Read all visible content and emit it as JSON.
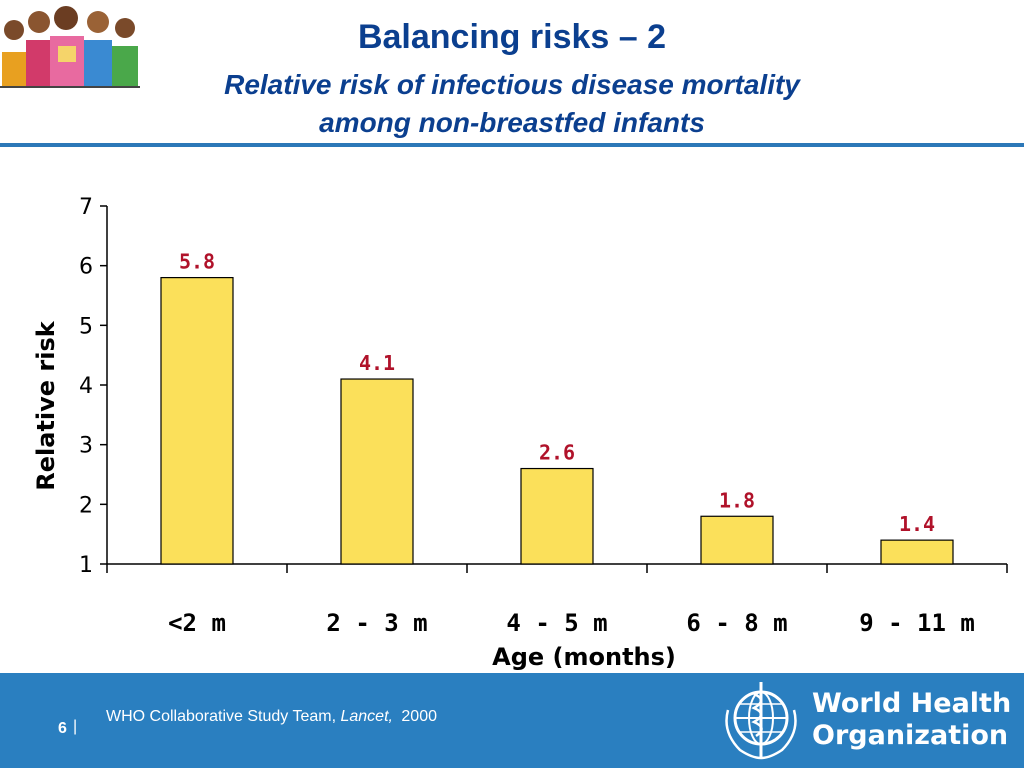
{
  "slide": {
    "title": "Balancing risks – 2",
    "subtitle_line1": "Relative risk of infectious disease mortality",
    "subtitle_line2": "among non-breastfed infants",
    "page_number": "6",
    "citation_author": "WHO Collaborative Study Team, ",
    "citation_journal": "Lancet,",
    "citation_year": "2000",
    "org_name_line1": "World Health",
    "org_name_line2": "Organization",
    "footer_color": "#2a7fc0",
    "title_color": "#0b3f8f"
  },
  "chart_data": {
    "type": "bar",
    "categories": [
      "<2 m",
      "2 - 3 m",
      "4 - 5 m",
      "6 - 8 m",
      "9 - 11 m"
    ],
    "values": [
      5.8,
      4.1,
      2.6,
      1.8,
      1.4
    ],
    "data_labels": [
      "5.8",
      "4.1",
      "2.6",
      "1.8",
      "1.4"
    ],
    "xlabel": "Age (months)",
    "ylabel": "Relative risk",
    "ylim": [
      1,
      7
    ],
    "yticks": [
      1,
      2,
      3,
      4,
      5,
      6,
      7
    ],
    "grid": false,
    "legend": "none",
    "bar_color": "#fbe05a",
    "bar_edge_color": "#000000",
    "label_color": "#b0122a"
  }
}
